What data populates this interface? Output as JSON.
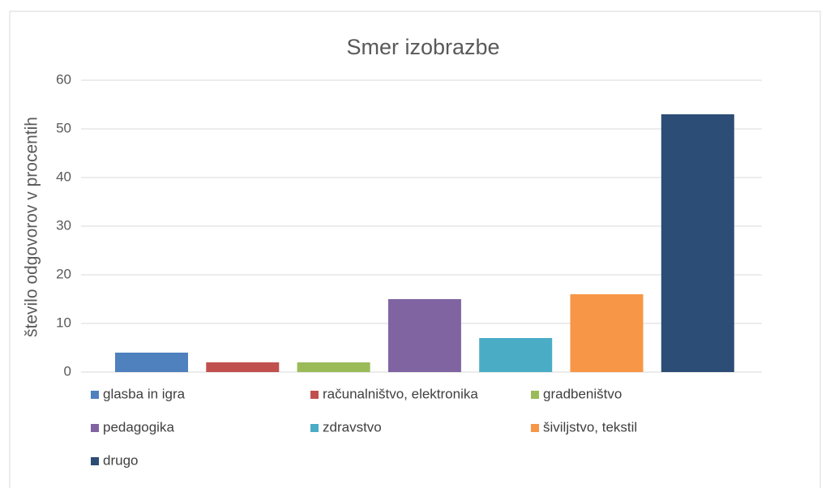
{
  "chart_data": {
    "type": "bar",
    "title": "Smer izobrazbe",
    "y_label": "število odgovorov v procentih",
    "series": [
      {
        "name": "glasba in igra",
        "color": "#4e81bd",
        "values": [
          4
        ]
      },
      {
        "name": "računalništvo, elektronika",
        "color": "#c0504d",
        "values": [
          2
        ]
      },
      {
        "name": "gradbeništvo",
        "color": "#9bbb59",
        "values": [
          2
        ]
      },
      {
        "name": "pedagogika",
        "color": "#8064a2",
        "values": [
          15
        ]
      },
      {
        "name": "zdravstvo",
        "color": "#4bacc6",
        "values": [
          7
        ]
      },
      {
        "name": "šiviljstvo, tekstil",
        "color": "#f79646",
        "values": [
          16
        ]
      },
      {
        "name": "drugo",
        "color": "#2c4d75",
        "values": [
          53
        ]
      }
    ],
    "ylim": [
      0,
      60
    ],
    "yticks": [
      0,
      10,
      20,
      30,
      40,
      50,
      60
    ],
    "grid": true,
    "legend": "bottom"
  }
}
